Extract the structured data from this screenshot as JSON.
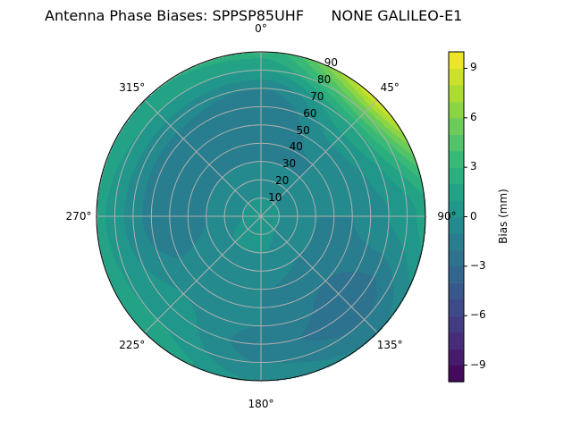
{
  "chart_data": {
    "type": "polar-contour",
    "title": "Antenna Phase Biases: SPPSP85UHF      NONE GALILEO-E1",
    "theta_direction": "clockwise",
    "theta_zero": "top",
    "theta_ticks": [
      "0°",
      "45°",
      "90°",
      "135°",
      "180°",
      "225°",
      "270°",
      "315°"
    ],
    "r_ticks": [
      "10",
      "20",
      "30",
      "40",
      "50",
      "60",
      "70",
      "80",
      "90"
    ],
    "r_range": [
      0,
      90
    ],
    "grid": true,
    "colormap": "viridis",
    "colorbar": {
      "label": "Bias (mm)",
      "range": [
        -10,
        10
      ],
      "level_step": 1,
      "ticks": [
        "−9",
        "−6",
        "−3",
        "0",
        "3",
        "6",
        "9"
      ],
      "tick_values": [
        -9,
        -6,
        -3,
        0,
        3,
        6,
        9
      ]
    },
    "azimuths": [
      0,
      45,
      90,
      135,
      180,
      225,
      270,
      315
    ],
    "zeniths": [
      0,
      10,
      20,
      30,
      40,
      50,
      60,
      70,
      80,
      90
    ],
    "values": [
      [
        0.5,
        0,
        -0.5,
        -1,
        -1.5,
        -2,
        -2,
        -1,
        1,
        2.5
      ],
      [
        0.5,
        0,
        -0.5,
        -1,
        -1,
        -0.5,
        0.5,
        2,
        5,
        9
      ],
      [
        0.5,
        0,
        -0.5,
        -1,
        -1,
        -1,
        -0.5,
        0,
        0.5,
        1.5
      ],
      [
        0.5,
        0,
        -0.5,
        -1,
        -1.5,
        -2,
        -2.5,
        -3,
        -2,
        -1
      ],
      [
        0.5,
        0.5,
        0,
        -0.5,
        -1,
        -1,
        -1,
        -1.5,
        -1,
        0
      ],
      [
        0.5,
        0.5,
        0,
        -0.5,
        -0.5,
        -0.5,
        0,
        0.5,
        1,
        2
      ],
      [
        0.5,
        0,
        -0.5,
        -1,
        -1.5,
        -2,
        -1.5,
        -0.5,
        0.5,
        1.5
      ],
      [
        0.5,
        0,
        -0.5,
        -1,
        -1.5,
        -2,
        -1.5,
        -0.5,
        1,
        2
      ]
    ]
  }
}
